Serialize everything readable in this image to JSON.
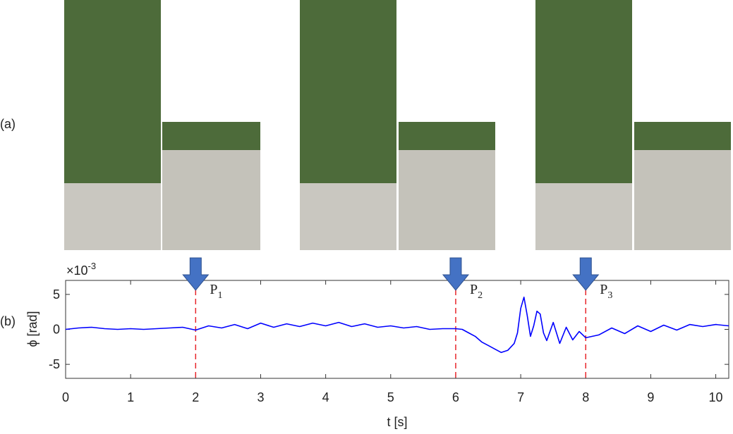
{
  "figure": {
    "panel_labels": [
      "(a)",
      "(b)"
    ]
  },
  "chart_data": {
    "type": "line",
    "x_label": "t [s]",
    "y_label": "ϕ [rad]",
    "scale_label": "×10",
    "scale_exponent": "-3",
    "xlim": [
      0,
      10.2
    ],
    "ylim": [
      -7,
      7
    ],
    "xticks": [
      0,
      1,
      2,
      3,
      4,
      5,
      6,
      7,
      8,
      9,
      10
    ],
    "yticks": [
      -5,
      0,
      5
    ],
    "markers": [
      {
        "x": 2,
        "label": "P",
        "sub": "1"
      },
      {
        "x": 6,
        "label": "P",
        "sub": "2"
      },
      {
        "x": 8,
        "label": "P",
        "sub": "3"
      }
    ],
    "marker_color": "#e8262b",
    "arrow_color": "#4472c4",
    "series": [
      {
        "color": "#0000ff",
        "x": [
          0,
          0.2,
          0.4,
          0.6,
          0.8,
          1.0,
          1.2,
          1.4,
          1.6,
          1.8,
          2.0,
          2.2,
          2.4,
          2.6,
          2.8,
          3.0,
          3.2,
          3.4,
          3.6,
          3.8,
          4.0,
          4.2,
          4.4,
          4.6,
          4.8,
          5.0,
          5.2,
          5.4,
          5.6,
          5.8,
          6.0,
          6.1,
          6.2,
          6.3,
          6.4,
          6.5,
          6.6,
          6.7,
          6.8,
          6.9,
          6.95,
          7.0,
          7.05,
          7.1,
          7.15,
          7.2,
          7.25,
          7.3,
          7.35,
          7.4,
          7.5,
          7.6,
          7.7,
          7.8,
          7.9,
          8.0,
          8.2,
          8.4,
          8.6,
          8.8,
          9.0,
          9.2,
          9.4,
          9.6,
          9.8,
          10.0,
          10.2
        ],
        "values": [
          0,
          0.2,
          0.3,
          0.1,
          0.0,
          0.1,
          0.0,
          0.1,
          0.2,
          0.3,
          -0.1,
          0.5,
          0.2,
          0.7,
          0.1,
          0.9,
          0.3,
          0.8,
          0.4,
          0.9,
          0.5,
          1.0,
          0.4,
          0.8,
          0.3,
          0.5,
          0.2,
          0.4,
          0.0,
          0.1,
          0.1,
          0.0,
          -0.5,
          -1.0,
          -1.8,
          -2.3,
          -2.8,
          -3.3,
          -3.0,
          -2.0,
          -0.5,
          3.0,
          4.6,
          2.0,
          -1.0,
          0.5,
          2.6,
          2.2,
          -0.5,
          -1.6,
          1.0,
          -2.0,
          0.3,
          -1.5,
          -0.3,
          -1.2,
          -0.8,
          0.2,
          -0.6,
          0.5,
          -0.3,
          0.6,
          -0.1,
          0.7,
          0.4,
          0.7,
          0.5
        ]
      }
    ]
  }
}
